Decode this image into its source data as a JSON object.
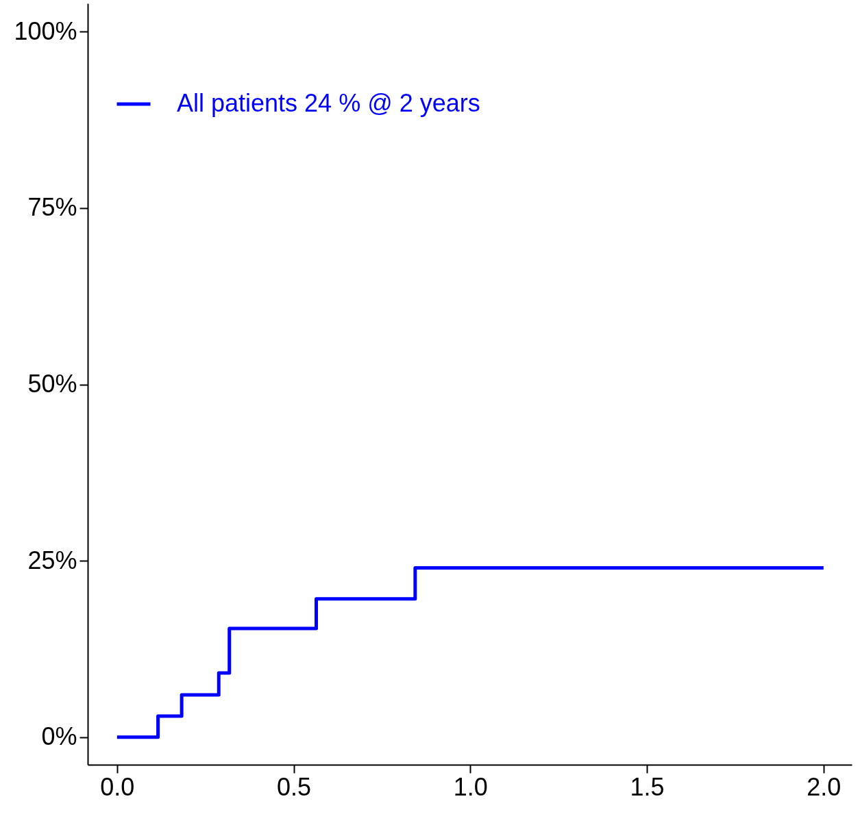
{
  "chart_data": {
    "type": "step",
    "x": [
      0,
      0.116,
      0.183,
      0.288,
      0.318,
      0.564,
      0.844,
      2.0
    ],
    "series": [
      {
        "name": "All patients 24 % @ 2 years",
        "color": "#0000ff",
        "values": [
          0,
          3.0,
          6.0,
          9.1,
          15.4,
          19.6,
          24.0,
          24.0
        ]
      }
    ],
    "xlim": [
      -0.083,
      2.08
    ],
    "ylim": [
      -3.9,
      104
    ],
    "xticks": [
      {
        "value": 0,
        "label": "0.0"
      },
      {
        "value": 0.5,
        "label": "0.5"
      },
      {
        "value": 1,
        "label": "1.0"
      },
      {
        "value": 1.5,
        "label": "1.5"
      },
      {
        "value": 2,
        "label": "2.0"
      }
    ],
    "yticks": [
      {
        "value": 0,
        "label": "0%"
      },
      {
        "value": 25,
        "label": "25%"
      },
      {
        "value": 50,
        "label": "50%"
      },
      {
        "value": 75,
        "label": "75%"
      },
      {
        "value": 100,
        "label": "100%"
      }
    ],
    "grid": false,
    "legend": "top left",
    "line_style": "solid",
    "marker": "none"
  }
}
